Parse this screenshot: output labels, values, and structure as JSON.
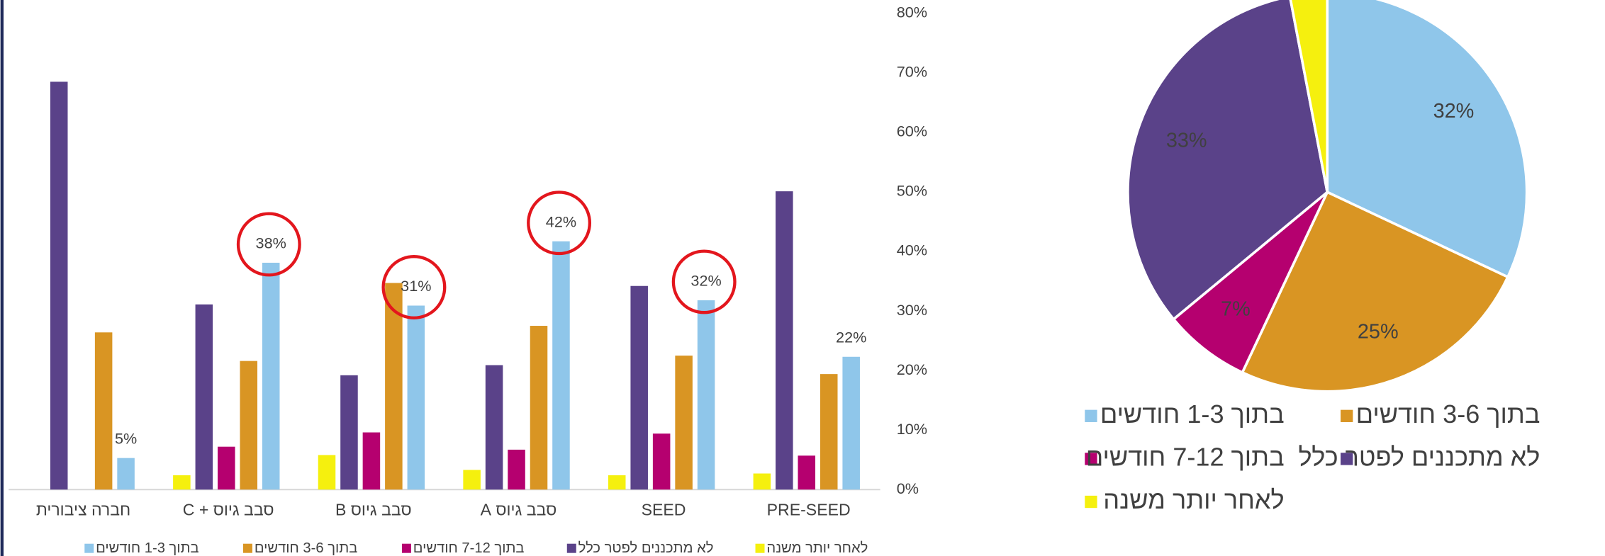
{
  "chart_data": [
    {
      "type": "bar",
      "categories": [
        "חברה ציבורית",
        "סבב גיוס + C",
        "סבב גיוס B",
        "סבב גיוס A",
        "SEED",
        "PRE-SEED"
      ],
      "series": [
        {
          "name": "לאחר יותר משנה",
          "color": "#f5f00e",
          "values": [
            null,
            2.4,
            5.8,
            3.3,
            2.4,
            2.7
          ]
        },
        {
          "name": "לא מתכננים לפטר כלל",
          "color": "#5a4289",
          "values": [
            68.5,
            31.1,
            19.2,
            20.9,
            34.2,
            50.1
          ]
        },
        {
          "name": "בתוך 7-12 חודשים",
          "color": "#b5006f",
          "values": [
            null,
            7.2,
            9.6,
            6.7,
            9.4,
            5.7
          ]
        },
        {
          "name": "בתוך 3-6 חודשים",
          "color": "#d99523",
          "values": [
            26.4,
            21.6,
            34.7,
            27.5,
            22.5,
            19.4
          ]
        },
        {
          "name": "בתוך 1-3 חודשים",
          "color": "#8fc6ea",
          "values": [
            5.3,
            38.1,
            30.9,
            41.7,
            31.8,
            22.3
          ],
          "value_labels": [
            "5%",
            "38%",
            "31%",
            "42%",
            "32%",
            "22%"
          ],
          "circled": [
            false,
            true,
            true,
            true,
            true,
            false
          ]
        }
      ],
      "ylim": [
        0,
        80
      ],
      "yticks": [
        {
          "value": 0,
          "label": "0%"
        },
        {
          "value": 10,
          "label": "10%"
        },
        {
          "value": 20,
          "label": "20%"
        },
        {
          "value": 30,
          "label": "30%"
        },
        {
          "value": 40,
          "label": "40%"
        },
        {
          "value": 50,
          "label": "50%"
        },
        {
          "value": 60,
          "label": "60%"
        },
        {
          "value": 70,
          "label": "70%"
        },
        {
          "value": 80,
          "label": "80%"
        }
      ],
      "grid": false,
      "legend": "bottom"
    },
    {
      "type": "pie",
      "categories": [
        "בתוך 1-3 חודשים",
        "בתוך 3-6 חודשים",
        "בתוך 7-12 חודשים",
        "לא מתכננים לפטר כלל",
        "לאחר יותר משנה"
      ],
      "values": [
        32,
        25,
        7,
        33,
        3
      ],
      "value_labels": [
        "32%",
        "25%",
        "7%",
        "33%",
        null
      ],
      "colors": [
        "#8fc6ea",
        "#d99523",
        "#b5006f",
        "#5a4289",
        "#f5f00e"
      ],
      "legend": "bottom"
    }
  ]
}
